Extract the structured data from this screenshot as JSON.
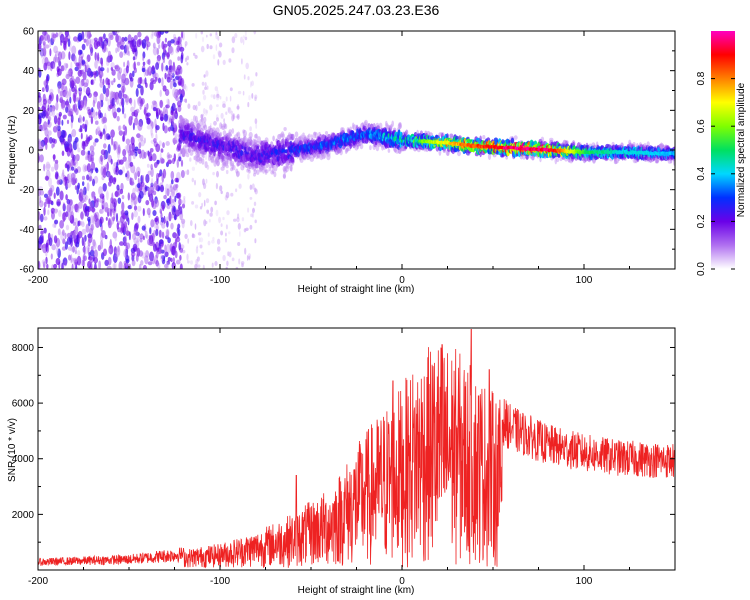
{
  "title": "GN05.2025.247.03.23.E36",
  "chart_data": [
    {
      "type": "heatmap",
      "xlabel": "Height of straight line (km)",
      "ylabel": "Frequency (Hz)",
      "xlim": [
        -200,
        150
      ],
      "ylim": [
        -60,
        60
      ],
      "xticks": [
        -200,
        -100,
        0,
        100
      ],
      "yticks": [
        -60,
        -40,
        -20,
        0,
        20,
        40,
        60
      ],
      "colorbar": {
        "label": "Normalized spectral amplitude",
        "range": [
          0,
          1
        ],
        "ticks": [
          0.0,
          0.2,
          0.4,
          0.6,
          0.8
        ],
        "colors": [
          "#ffffff",
          "#b070f0",
          "#6a00e8",
          "#0030ff",
          "#00d8ff",
          "#00e060",
          "#80ff00",
          "#ffff00",
          "#ff8000",
          "#ff0000",
          "#ff00c0"
        ]
      },
      "ridge": {
        "x": [
          -120,
          -100,
          -80,
          -60,
          -40,
          -20,
          0,
          20,
          40,
          60,
          80,
          100,
          120,
          150
        ],
        "y": [
          8,
          2,
          -3,
          0,
          3,
          8,
          5,
          4,
          2,
          1,
          0,
          -1,
          -1,
          -2
        ],
        "peak_amplitude": [
          0.25,
          0.25,
          0.25,
          0.3,
          0.35,
          0.35,
          0.5,
          0.7,
          0.9,
          1.0,
          1.0,
          0.55,
          0.45,
          0.4
        ]
      }
    },
    {
      "type": "line",
      "series_name": "SNR",
      "color": "#ee2222",
      "xlabel": "Height of straight line (km)",
      "ylabel": "SNR (10 * v/v)",
      "xlim": [
        -200,
        150
      ],
      "ylim": [
        0,
        8700
      ],
      "xticks": [
        -200,
        -100,
        0,
        100
      ],
      "yticks": [
        2000,
        4000,
        6000,
        8000
      ],
      "envelope": {
        "x": [
          -200,
          -150,
          -120,
          -100,
          -80,
          -60,
          -40,
          -20,
          0,
          10,
          20,
          30,
          40,
          50,
          60,
          80,
          100,
          120,
          150
        ],
        "y": [
          300,
          400,
          600,
          800,
          1200,
          1800,
          2600,
          4500,
          6000,
          7000,
          7500,
          7200,
          6500,
          5800,
          5200,
          4600,
          4300,
          4100,
          4000
        ]
      },
      "peaks": [
        {
          "x": 22,
          "y": 8100
        },
        {
          "x": 38,
          "y": 8650
        },
        {
          "x": 48,
          "y": 7200
        },
        {
          "x": -5,
          "y": 6800
        },
        {
          "x": -58,
          "y": 3400
        }
      ]
    }
  ]
}
